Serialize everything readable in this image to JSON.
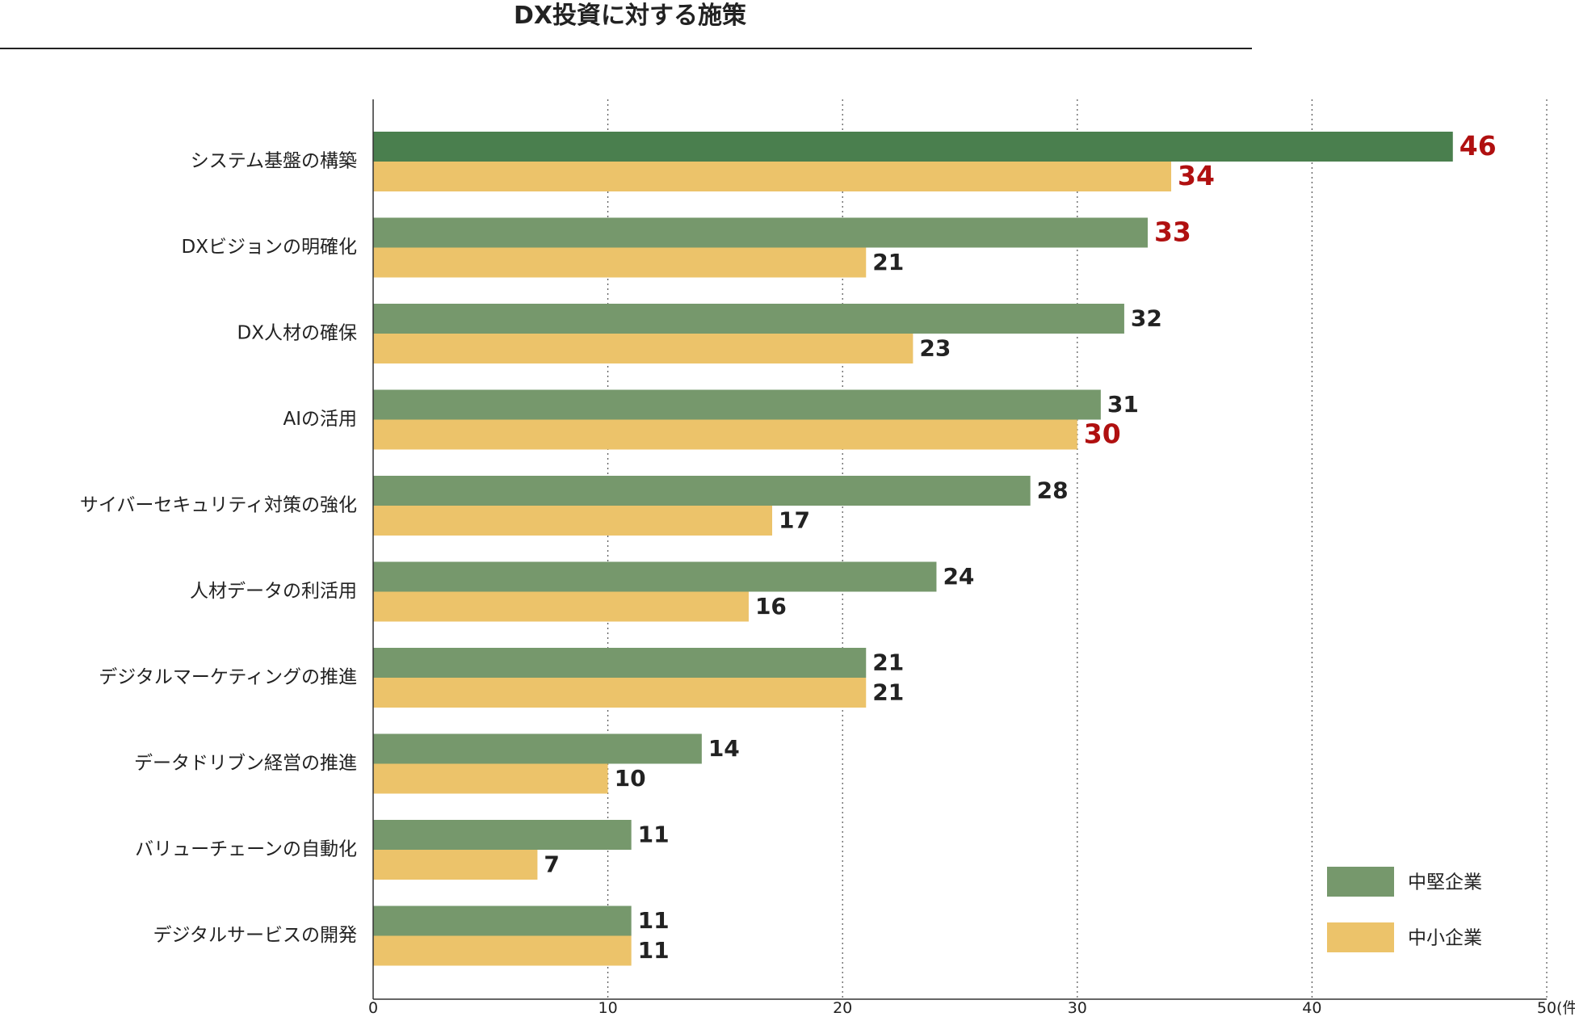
{
  "chart_data": {
    "type": "bar",
    "orientation": "horizontal",
    "title": "DX投資に対する施策",
    "unit_label": "(件)",
    "categories": [
      "システム基盤の構築",
      "DXビジョンの明確化",
      "DX人材の確保",
      "AIの活用",
      "サイバーセキュリティ対策の強化",
      "人材データの利活用",
      "デジタルマーケティングの推進",
      "データドリブン経営の推進",
      "バリューチェーンの自動化",
      "デジタルサービスの開発"
    ],
    "series": [
      {
        "name": "中堅企業",
        "color": "#76986c",
        "values": [
          46,
          33,
          32,
          31,
          28,
          24,
          21,
          14,
          11,
          11
        ]
      },
      {
        "name": "中小企業",
        "color": "#ecc36a",
        "values": [
          34,
          21,
          23,
          30,
          17,
          16,
          21,
          10,
          7,
          11
        ]
      }
    ],
    "first_bar_color": "#4a7f4e",
    "highlight_label_color": "#b01010",
    "highlighted": [
      {
        "series": 0,
        "index": 0
      },
      {
        "series": 0,
        "index": 1
      },
      {
        "series": 1,
        "index": 0
      },
      {
        "series": 1,
        "index": 3
      }
    ],
    "xlim": [
      0,
      50
    ],
    "xticks": [
      0,
      10,
      20,
      30,
      40,
      50
    ],
    "grid": "vertical dotted",
    "legend_position": "bottom-right"
  }
}
